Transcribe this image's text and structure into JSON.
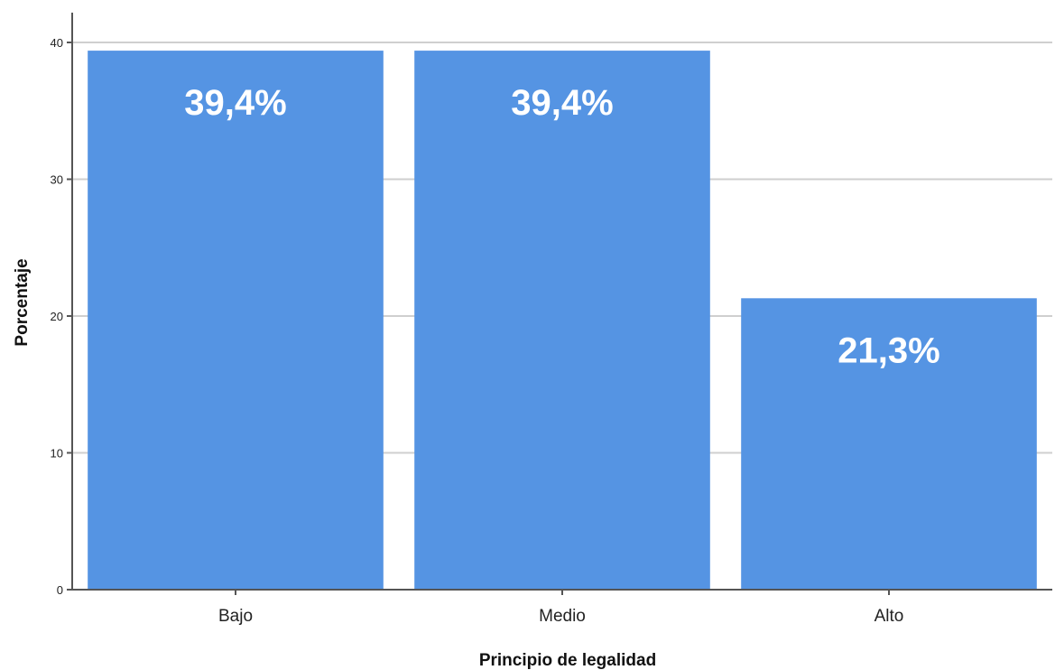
{
  "chart_data": {
    "type": "bar",
    "categories": [
      "Bajo",
      "Medio",
      "Alto"
    ],
    "values": [
      39.4,
      39.4,
      21.3
    ],
    "data_labels": [
      "39,4%",
      "39,4%",
      "21,3%"
    ],
    "title": "",
    "xlabel": "Principio de legalidad",
    "ylabel": "Porcentaje",
    "ylim": [
      0,
      40
    ],
    "yticks": [
      0,
      10,
      20,
      30,
      40
    ],
    "grid": true,
    "bar_color": "#5594e3"
  }
}
